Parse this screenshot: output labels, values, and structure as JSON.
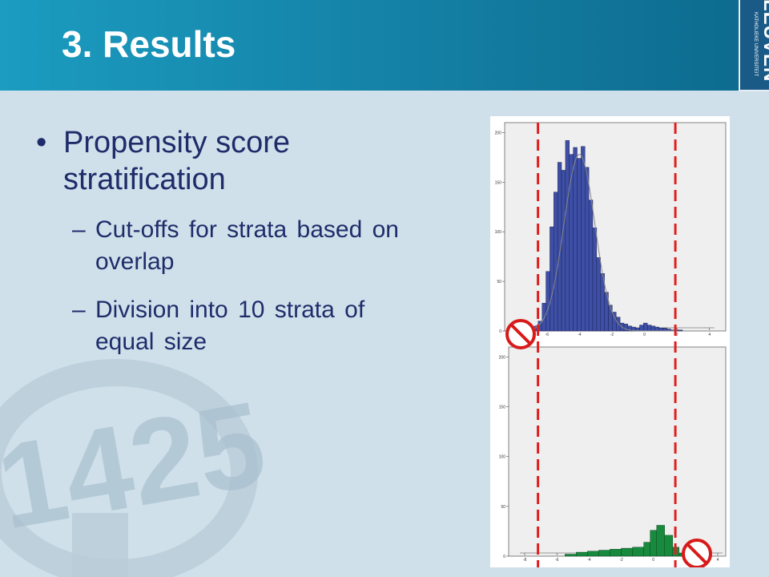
{
  "slide": {
    "title": "3. Results",
    "logo_main": "LEUVEN",
    "logo_sub": "KATHOLIEKE UNIVERSITEIT",
    "watermark_number": "1425",
    "bullet": "Propensity score stratification",
    "subs": [
      "Cut-offs for strata based on overlap",
      "Division into 10 strata of equal size"
    ]
  },
  "chart_data": [
    {
      "type": "bar",
      "color": "#3d4fa6",
      "curve_color": "#888888",
      "xlim": [
        -8.6,
        5.0
      ],
      "ylim": [
        0,
        210
      ],
      "xticks": [
        -8,
        -6,
        -4,
        -2,
        0,
        2,
        4
      ],
      "yticks": [
        0,
        50,
        100,
        150,
        200
      ],
      "bin_width": 0.24,
      "x": [
        -7.5,
        -7.26,
        -7.02,
        -6.78,
        -6.54,
        -6.3,
        -6.06,
        -5.82,
        -5.58,
        -5.34,
        -5.1,
        -4.86,
        -4.62,
        -4.38,
        -4.14,
        -3.9,
        -3.66,
        -3.42,
        -3.18,
        -2.94,
        -2.7,
        -2.46,
        -2.22,
        -1.98,
        -1.74,
        -1.5,
        -1.26,
        -1.02,
        -0.78,
        -0.54,
        -0.3,
        -0.06,
        0.18,
        0.42,
        0.66,
        0.9,
        1.14,
        1.38,
        1.62,
        1.86,
        2.1
      ],
      "values": [
        1,
        2,
        3,
        5,
        10,
        28,
        60,
        105,
        140,
        170,
        162,
        192,
        178,
        185,
        174,
        186,
        165,
        132,
        104,
        74,
        58,
        39,
        26,
        19,
        14,
        8,
        7,
        5,
        4,
        3,
        6,
        8,
        6,
        5,
        4,
        3,
        3,
        2,
        1,
        1,
        1
      ],
      "cutoffs": [
        -6.55,
        1.9
      ]
    },
    {
      "type": "bar",
      "color": "#178a3e",
      "xlim": [
        -9.0,
        4.5
      ],
      "ylim": [
        0,
        210
      ],
      "xticks": [
        -8,
        -6,
        -4,
        -2,
        0,
        2,
        4
      ],
      "yticks": [
        0,
        50,
        100,
        150,
        200
      ],
      "x0": [
        -5.5,
        -4.8,
        -4.1,
        -3.4,
        -2.7,
        -2.0,
        -1.3,
        -0.6,
        -0.2,
        0.2,
        0.7,
        1.2,
        1.6
      ],
      "x1": [
        -4.8,
        -4.1,
        -3.4,
        -2.7,
        -2.0,
        -1.3,
        -0.6,
        -0.2,
        0.2,
        0.7,
        1.2,
        1.6,
        2.0
      ],
      "values": [
        2,
        4,
        5,
        6,
        7,
        8,
        9,
        14,
        26,
        31,
        21,
        9,
        3
      ],
      "cutoffs": [
        -6.55,
        1.9
      ]
    }
  ]
}
